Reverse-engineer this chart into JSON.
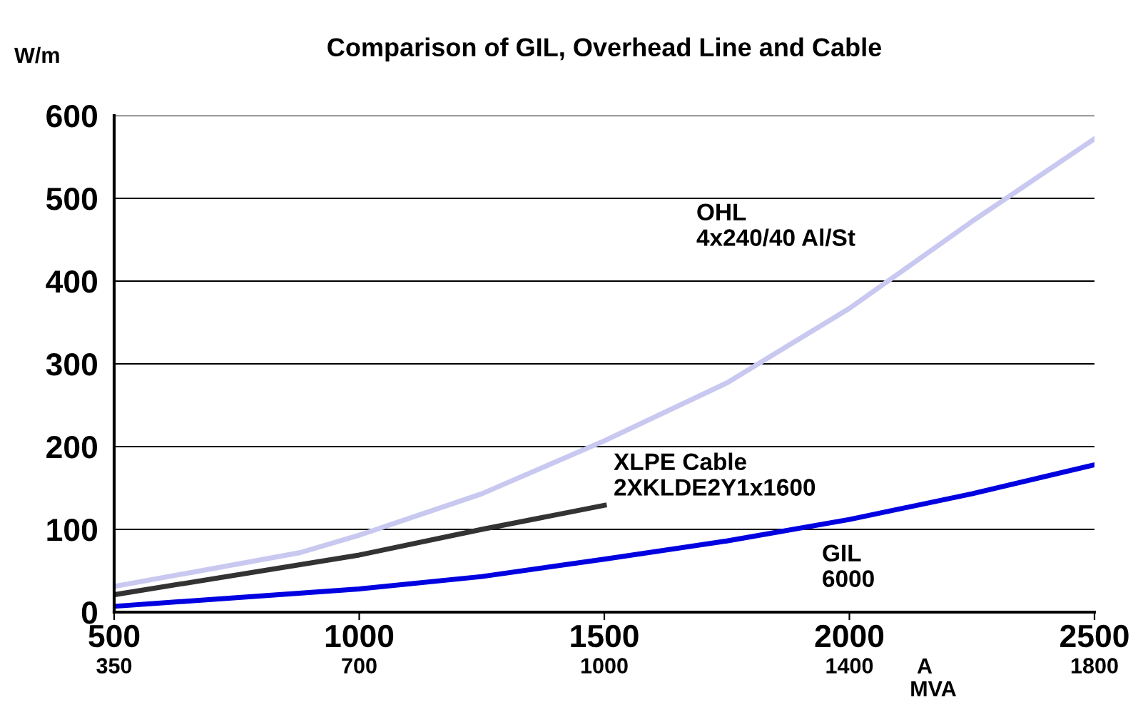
{
  "chart_data": {
    "type": "line",
    "title": "Comparison of GIL, Overhead Line and Cable",
    "ylabel": "W/m",
    "xlabel": "A",
    "series": [
      {
        "color": "#c8c8f0",
        "x": [
          500,
          880,
          1000,
          1250,
          1500,
          1750,
          2000,
          2250,
          2500
        ],
        "values": [
          31,
          72,
          93,
          143,
          207,
          277,
          367,
          472,
          572
        ]
      },
      {
        "color": "#333333",
        "x": [
          500,
          1000,
          1250,
          1500
        ],
        "values": [
          21,
          69,
          100,
          129
        ]
      },
      {
        "color": "#0000e0",
        "x": [
          500,
          1000,
          1250,
          1500,
          1750,
          2000,
          2250,
          2500
        ],
        "values": [
          7,
          28,
          43,
          64,
          86,
          112,
          143,
          178
        ]
      }
    ],
    "annotations": [
      "OHL\n4x240/40 Al/St",
      "XLPE Cable\n2XKLDE2Y1x1600",
      "GIL\n6000",
      "MVA",
      "350",
      "700",
      "1000",
      "1400",
      "1800"
    ],
    "xlim": [
      500,
      2500
    ],
    "xticks": [
      500,
      1000,
      1500,
      2000,
      2500
    ],
    "ylim": [
      0,
      600
    ],
    "yticks": [
      0,
      100,
      200,
      300,
      400,
      500,
      600
    ],
    "grid": "y",
    "legend": false,
    "marker": "none",
    "line_style": "solid"
  }
}
